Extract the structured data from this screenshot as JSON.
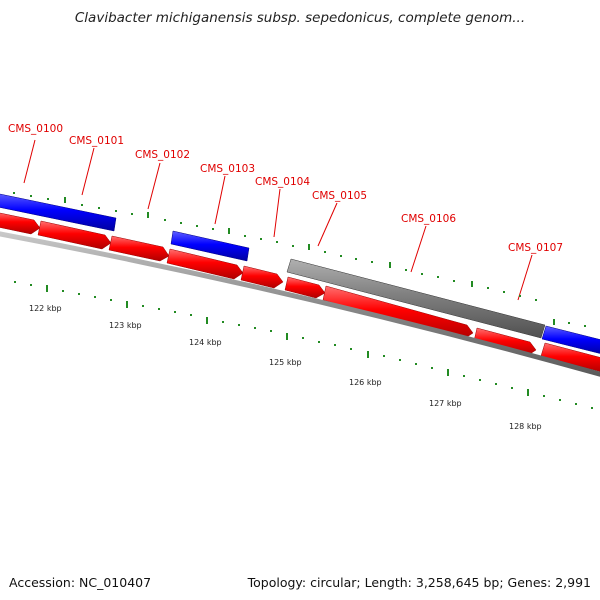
{
  "title": "Clavibacter michiganensis subsp. sepedonicus, complete genom...",
  "accession": "Accession: NC_010407",
  "summary": "Topology: circular; Length: 3,258,645 bp; Genes: 2,991",
  "gene_labels": [
    "CMS_0100",
    "CMS_0101",
    "CMS_0102",
    "CMS_0103",
    "CMS_0104",
    "CMS_0105",
    "CMS_0106",
    "CMS_0107"
  ],
  "kbp_labels": [
    "122 kbp",
    "123 kbp",
    "124 kbp",
    "125 kbp",
    "126 kbp",
    "127 kbp",
    "128 kbp"
  ],
  "colors": {
    "forward_strand": "#0000ff",
    "reverse_strand": "#ff0000",
    "other_feature": "#808080",
    "label": "#e00000",
    "tick": "#228b22",
    "backbone": "#888888"
  }
}
